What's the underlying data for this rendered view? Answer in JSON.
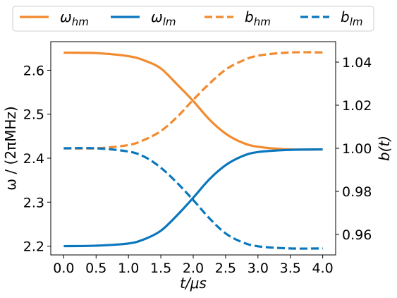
{
  "chart_data": {
    "type": "line",
    "xlabel": "t/μs",
    "ylabel_left": "ω / (2πMHz)",
    "ylabel_right": "b(t)",
    "xlim": [
      -0.2,
      4.2
    ],
    "ylim_left": [
      2.18,
      2.665
    ],
    "ylim_right": [
      0.9505,
      1.0495
    ],
    "x_ticks": [
      "0.0",
      "0.5",
      "1.0",
      "1.5",
      "2.0",
      "2.5",
      "3.0",
      "3.5",
      "4.0"
    ],
    "y_ticks_left": [
      "2.2",
      "2.3",
      "2.4",
      "2.5",
      "2.6"
    ],
    "y_ticks_right": [
      "0.96",
      "0.98",
      "1.00",
      "1.02",
      "1.04"
    ],
    "grid": false,
    "legend_position": "top, outside plot",
    "series": [
      {
        "name": "ω_hm",
        "axis": "left",
        "style": "solid",
        "color": "#f28a2e",
        "x": [
          0.0,
          0.5,
          1.0,
          1.25,
          1.5,
          1.75,
          2.0,
          2.25,
          2.5,
          2.75,
          3.0,
          3.5,
          4.0
        ],
        "y": [
          2.64,
          2.639,
          2.632,
          2.622,
          2.604,
          2.568,
          2.53,
          2.488,
          2.456,
          2.436,
          2.426,
          2.42,
          2.42
        ]
      },
      {
        "name": "ω_lm",
        "axis": "left",
        "style": "solid",
        "color": "#0a77bd",
        "x": [
          0.0,
          0.5,
          1.0,
          1.25,
          1.5,
          1.75,
          2.0,
          2.25,
          2.5,
          2.75,
          3.0,
          3.5,
          4.0
        ],
        "y": [
          2.2,
          2.201,
          2.206,
          2.216,
          2.235,
          2.27,
          2.31,
          2.352,
          2.384,
          2.404,
          2.414,
          2.419,
          2.42
        ]
      },
      {
        "name": "b_hm",
        "axis": "right",
        "style": "dashed",
        "color": "#f28a2e",
        "x": [
          0.0,
          0.5,
          1.0,
          1.25,
          1.5,
          1.75,
          2.0,
          2.25,
          2.5,
          2.75,
          3.0,
          3.5,
          4.0
        ],
        "y": [
          1.0,
          1.0,
          1.0015,
          1.004,
          1.008,
          1.0145,
          1.0225,
          1.03,
          1.0365,
          1.0405,
          1.043,
          1.0445,
          1.0445
        ]
      },
      {
        "name": "b_lm",
        "axis": "right",
        "style": "dashed",
        "color": "#0a77bd",
        "x": [
          0.0,
          0.5,
          1.0,
          1.25,
          1.5,
          1.75,
          2.0,
          2.25,
          2.5,
          2.75,
          3.0,
          3.5,
          4.0
        ],
        "y": [
          1.0,
          1.0,
          0.9985,
          0.996,
          0.991,
          0.984,
          0.976,
          0.9675,
          0.9605,
          0.9565,
          0.9545,
          0.9535,
          0.9535
        ]
      }
    ]
  }
}
